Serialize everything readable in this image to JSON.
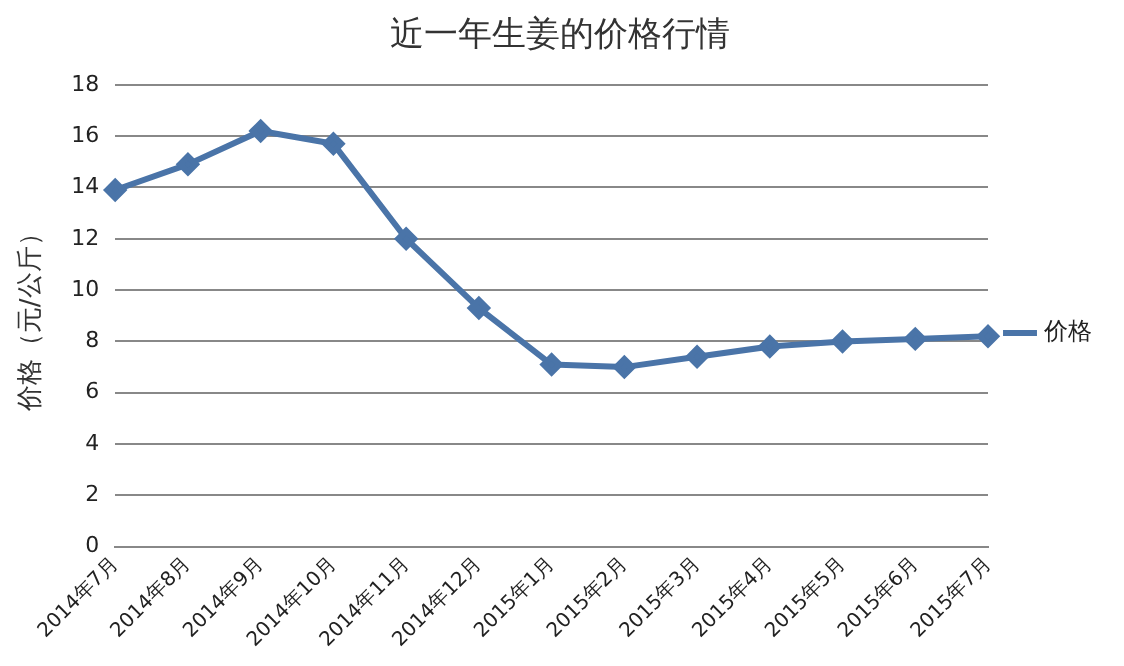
{
  "chart_data": {
    "type": "line",
    "title": "近一年生姜的价格行情",
    "ylabel": "价格（元/公斤）",
    "categories": [
      "2014年7月",
      "2014年8月",
      "2014年9月",
      "2014年10月",
      "2014年11月",
      "2014年12月",
      "2015年1月",
      "2015年2月",
      "2015年3月",
      "2015年4月",
      "2015年5月",
      "2015年6月",
      "2015年7月"
    ],
    "series": [
      {
        "name": "价格",
        "color": "#4a74a8",
        "values": [
          13.9,
          14.9,
          16.2,
          15.7,
          12,
          9.3,
          7.1,
          7.0,
          7.4,
          7.8,
          8.0,
          8.1,
          8.2
        ]
      }
    ],
    "ylim": [
      0,
      18
    ],
    "yticks": [
      0,
      2,
      4,
      6,
      8,
      10,
      12,
      14,
      16,
      18
    ],
    "grid": "y",
    "legend": "right",
    "marker": "diamond",
    "line_style": "solid"
  }
}
